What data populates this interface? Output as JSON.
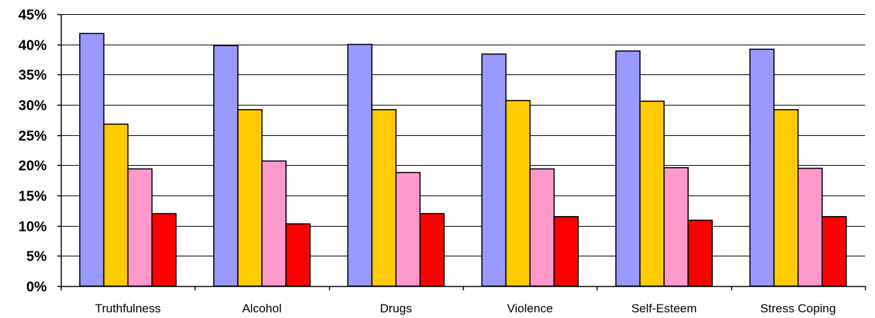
{
  "chart_data": {
    "type": "bar",
    "title": "",
    "xlabel": "",
    "ylabel": "",
    "categories": [
      "Truthfulness",
      "Alcohol",
      "Drugs",
      "Violence",
      "Self-Esteem",
      "Stress Coping"
    ],
    "series": [
      {
        "values": [
          41.8,
          39.8,
          40.0,
          38.4,
          38.9,
          39.2
        ],
        "color": "#9999FF"
      },
      {
        "values": [
          26.8,
          29.2,
          29.2,
          30.7,
          30.6,
          29.2
        ],
        "color": "#FFCC00"
      },
      {
        "values": [
          19.4,
          20.7,
          18.8,
          19.4,
          19.6,
          19.5
        ],
        "color": "#FF99CC"
      },
      {
        "values": [
          12.0,
          10.3,
          12.0,
          11.5,
          10.9,
          11.5
        ],
        "color": "#FF0000"
      }
    ],
    "ylim": [
      0,
      45
    ],
    "yticks": [
      0,
      5,
      10,
      15,
      20,
      25,
      30,
      35,
      40,
      45
    ],
    "ytick_labels": [
      "0%",
      "5%",
      "10%",
      "15%",
      "20%",
      "25%",
      "30%",
      "35%",
      "40%",
      "45%"
    ],
    "grid": true,
    "legend": "none"
  }
}
